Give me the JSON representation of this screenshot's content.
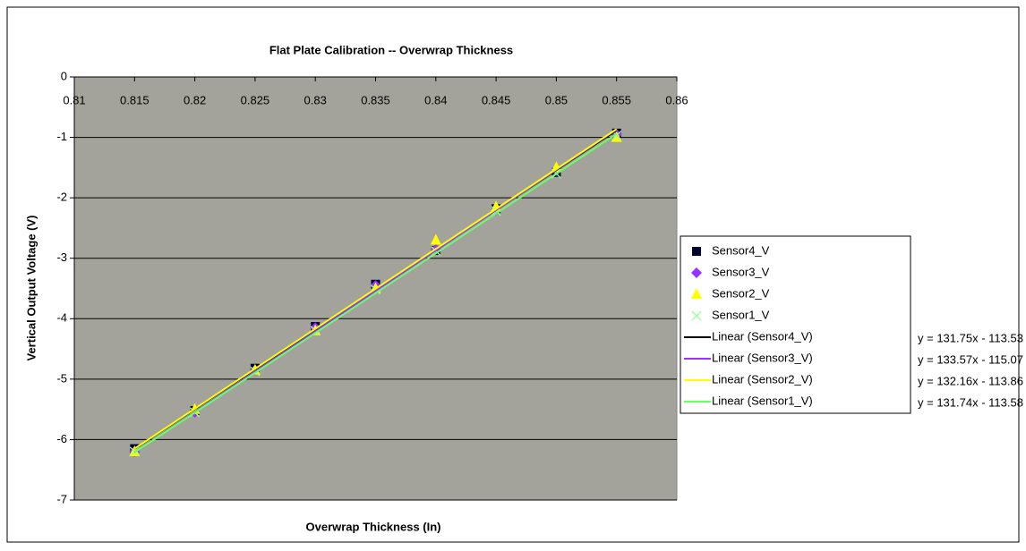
{
  "chart_data": {
    "type": "scatter",
    "title": "Flat Plate Calibration -- Overwrap Thickness",
    "x_label": "Overwrap Thickness (In)",
    "y_label": "Vertical Output Voltage (V)",
    "x": [
      0.815,
      0.82,
      0.825,
      0.83,
      0.835,
      0.84,
      0.845,
      0.85,
      0.855
    ],
    "series": [
      {
        "name": "Sensor4_V",
        "color": "#000033",
        "marker": "square",
        "values": [
          -6.15,
          -5.52,
          -4.82,
          -4.13,
          -3.43,
          -2.87,
          -2.18,
          -1.58,
          -0.93
        ]
      },
      {
        "name": "Sensor3_V",
        "color": "#9933ff",
        "marker": "diamond",
        "values": [
          -6.2,
          -5.55,
          -4.85,
          -4.15,
          -3.45,
          -2.85,
          -2.2,
          -1.55,
          -0.95
        ]
      },
      {
        "name": "Sensor2_V",
        "color": "#ffff00",
        "marker": "triangle",
        "values": [
          -6.2,
          -5.5,
          -4.85,
          -4.2,
          -3.5,
          -2.7,
          -2.15,
          -1.5,
          -1.0
        ]
      },
      {
        "name": "Sensor1_V",
        "color": "#99ff99",
        "marker": "x",
        "values": [
          -6.2,
          -5.55,
          -4.87,
          -4.2,
          -3.52,
          -2.88,
          -2.22,
          -1.6,
          -0.97
        ]
      }
    ],
    "trendlines": [
      {
        "name": "Linear (Sensor4_V)",
        "color": "#000000",
        "equation": "y = 131.75x - 113.53",
        "slope": 131.75,
        "intercept": -113.53
      },
      {
        "name": "Linear (Sensor3_V)",
        "color": "#9933ff",
        "equation": "y = 133.57x - 115.07",
        "slope": 133.57,
        "intercept": -115.07
      },
      {
        "name": "Linear (Sensor2_V)",
        "color": "#ffff00",
        "equation": "y = 132.16x - 113.86",
        "slope": 132.16,
        "intercept": -113.86
      },
      {
        "name": "Linear (Sensor1_V)",
        "color": "#66ff66",
        "equation": "y = 131.74x - 113.58",
        "slope": 131.74,
        "intercept": -113.58
      }
    ],
    "xlim": [
      0.81,
      0.86
    ],
    "xticks": [
      0.81,
      0.815,
      0.82,
      0.825,
      0.83,
      0.835,
      0.84,
      0.845,
      0.85,
      0.855,
      0.86
    ],
    "ylim": [
      -7,
      0
    ],
    "yticks": [
      0,
      -1,
      -2,
      -3,
      -4,
      -5,
      -6,
      -7
    ],
    "grid": true,
    "plot_background": "#a3a39b"
  }
}
